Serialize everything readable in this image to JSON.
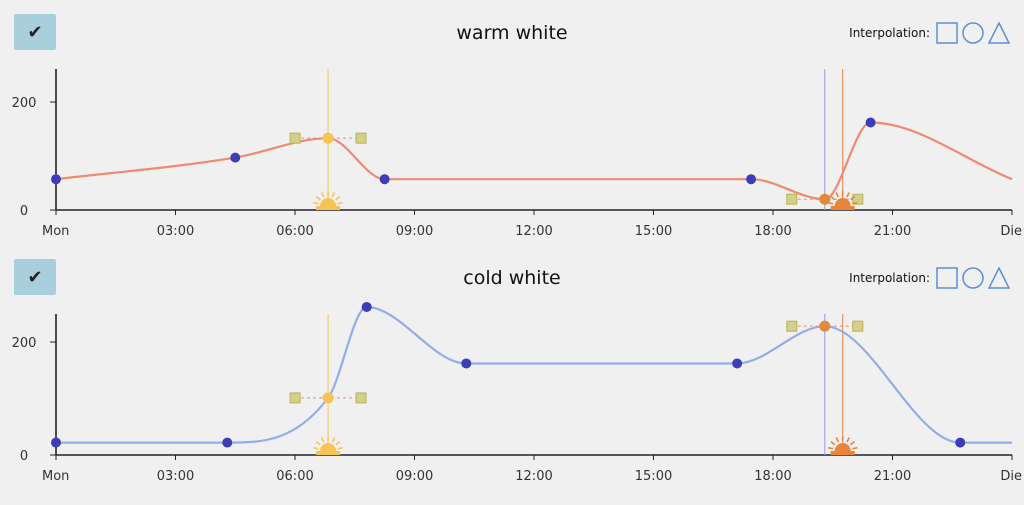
{
  "interpolation_label": "Interpolation:",
  "check_glyph": "✔",
  "colors": {
    "warm_line": "#ef8a6f",
    "cold_line": "#92aee8",
    "point_fill": "#3d3db8",
    "selected_point": "#e08a3c",
    "handle": "#d4d08a",
    "sunrise": "#f5c453",
    "sunset": "#e8843c",
    "now_line": "#9a9ae0",
    "shape_icon": "#5b8fd6"
  },
  "interpolation_icons": [
    "square-icon",
    "circle-icon",
    "triangle-icon"
  ],
  "chart_data": [
    {
      "type": "line",
      "title": "warm white",
      "x_ticks": [
        "Mon",
        "03:00",
        "06:00",
        "09:00",
        "12:00",
        "15:00",
        "18:00",
        "21:00",
        "Die"
      ],
      "xlim": [
        0,
        24
      ],
      "y_ticks": [
        0,
        200
      ],
      "ylim": [
        0,
        260
      ],
      "points": [
        {
          "x": 0.0,
          "y": 57
        },
        {
          "x": 4.5,
          "y": 97
        },
        {
          "x": 6.83,
          "y": 133,
          "handle": true
        },
        {
          "x": 8.25,
          "y": 57
        },
        {
          "x": 17.45,
          "y": 57
        },
        {
          "x": 19.3,
          "y": 20,
          "selected": true,
          "handle": true
        },
        {
          "x": 20.45,
          "y": 162
        },
        {
          "x": 24.0,
          "y": 57
        }
      ],
      "sunrise": 6.83,
      "sunset": 19.75,
      "now": 19.3
    },
    {
      "type": "line",
      "title": "cold white",
      "x_ticks": [
        "Mon",
        "03:00",
        "06:00",
        "09:00",
        "12:00",
        "15:00",
        "18:00",
        "21:00",
        "Die"
      ],
      "xlim": [
        0,
        24
      ],
      "y_ticks": [
        0,
        200
      ],
      "ylim": [
        0,
        260
      ],
      "points": [
        {
          "x": 0.0,
          "y": 22
        },
        {
          "x": 4.3,
          "y": 22
        },
        {
          "x": 6.83,
          "y": 101,
          "handle": true
        },
        {
          "x": 7.8,
          "y": 262
        },
        {
          "x": 10.3,
          "y": 162
        },
        {
          "x": 17.1,
          "y": 162
        },
        {
          "x": 19.3,
          "y": 228,
          "selected": true,
          "handle": true
        },
        {
          "x": 22.7,
          "y": 22
        },
        {
          "x": 24.0,
          "y": 22
        }
      ],
      "sunrise": 6.83,
      "sunset": 19.75,
      "now": 19.3
    }
  ]
}
